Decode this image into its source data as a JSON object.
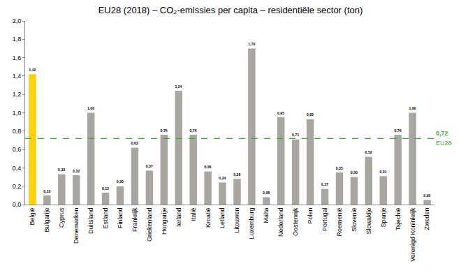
{
  "chart_data": {
    "type": "bar",
    "title": "EU28 (2018) – CO₂-emissies per capita – residentiële sector (ton)",
    "categories": [
      "België",
      "Bulgarije",
      "Cyprus",
      "Denemarken",
      "Duitsland",
      "Estland",
      "Finland",
      "Frankrijk",
      "Griekenland",
      "Hongarije",
      "Ierland",
      "Italië",
      "Kroatië",
      "Letland",
      "Litouwen",
      "Luxemburg",
      "Malta",
      "Nederland",
      "Oostenrijk",
      "Polen",
      "Portugal",
      "Roemenië",
      "Slovenië",
      "Slowakije",
      "Spanje",
      "Tsjechië",
      "Verenigd Koninkrijk",
      "Zweden"
    ],
    "values": [
      1.42,
      0.1,
      0.33,
      0.32,
      1.0,
      0.13,
      0.2,
      0.62,
      0.37,
      0.76,
      1.24,
      0.76,
      0.36,
      0.24,
      0.28,
      1.7,
      0.08,
      0.95,
      0.71,
      0.93,
      0.17,
      0.35,
      0.3,
      0.52,
      0.31,
      0.76,
      1.0,
      0.05
    ],
    "value_labels": [
      "1,42",
      "0,10",
      "0,33",
      "0,32",
      "1,00",
      "0,13",
      "0,20",
      "0,62",
      "0,37",
      "0,76",
      "1,24",
      "0,76",
      "0,36",
      "0,24",
      "0,28",
      "1,70",
      "0,08",
      "0,95",
      "0,71",
      "0,93",
      "0,17",
      "0,35",
      "0,30",
      "0,52",
      "0,31",
      "0,76",
      "1,00",
      "0,05"
    ],
    "colors": [
      "#fdd20a",
      "#a9a5a1",
      "#a9a5a1",
      "#a9a5a1",
      "#a9a5a1",
      "#a9a5a1",
      "#a9a5a1",
      "#a9a5a1",
      "#a9a5a1",
      "#a9a5a1",
      "#a9a5a1",
      "#a9a5a1",
      "#a9a5a1",
      "#a9a5a1",
      "#a9a5a1",
      "#a9a5a1",
      "#a9a5a1",
      "#a9a5a1",
      "#a9a5a1",
      "#a9a5a1",
      "#a9a5a1",
      "#a9a5a1",
      "#a9a5a1",
      "#a9a5a1",
      "#a9a5a1",
      "#a9a5a1",
      "#a9a5a1",
      "#a9a5a1"
    ],
    "ylim": [
      0,
      2.0
    ],
    "yticks": [
      {
        "value": 0,
        "label": "0,0"
      },
      {
        "value": 0.2,
        "label": "0,2"
      },
      {
        "value": 0.4,
        "label": "0,4"
      },
      {
        "value": 0.6,
        "label": "0,6"
      },
      {
        "value": 0.8,
        "label": "0,8"
      },
      {
        "value": 1.0,
        "label": "1,0"
      },
      {
        "value": 1.2,
        "label": "1,2"
      },
      {
        "value": 1.4,
        "label": "1,4"
      },
      {
        "value": 1.6,
        "label": "1,6"
      },
      {
        "value": 1.8,
        "label": "1,8"
      },
      {
        "value": 2.0,
        "label": "2,0"
      }
    ],
    "grid": false,
    "data_labels": true,
    "reference": {
      "value": 0.72,
      "value_label": "0,72",
      "label": "EU28",
      "color": "#3aaa35",
      "line_style": "dash"
    }
  }
}
